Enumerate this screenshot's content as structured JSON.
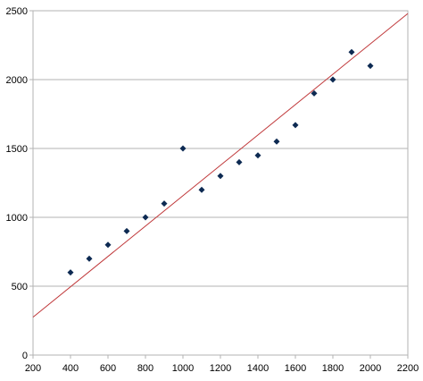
{
  "chart_data": {
    "type": "scatter",
    "title": "",
    "xlabel": "",
    "ylabel": "",
    "xlim": [
      200,
      2200
    ],
    "ylim": [
      0,
      2500
    ],
    "x_ticks": [
      "200",
      "400",
      "600",
      "800",
      "1000",
      "1200",
      "1400",
      "1600",
      "1800",
      "2000",
      "2200"
    ],
    "y_ticks": [
      "0",
      "500",
      "1000",
      "1500",
      "2000",
      "2500"
    ],
    "grid": "horizontal",
    "legend": "none",
    "series": [
      {
        "marker_color": "#0d2a52",
        "points": [
          [
            400,
            600
          ],
          [
            500,
            700
          ],
          [
            600,
            800
          ],
          [
            700,
            900
          ],
          [
            800,
            1000
          ],
          [
            900,
            1100
          ],
          [
            1000,
            1500
          ],
          [
            1100,
            1200
          ],
          [
            1200,
            1300
          ],
          [
            1300,
            1400
          ],
          [
            1400,
            1450
          ],
          [
            1500,
            1550
          ],
          [
            1600,
            1670
          ],
          [
            1700,
            1900
          ],
          [
            1800,
            2000
          ],
          [
            1900,
            2200
          ],
          [
            2000,
            2100
          ]
        ]
      }
    ],
    "trendline": {
      "color": "#c0393b",
      "from": [
        200,
        275
      ],
      "to": [
        2200,
        2480
      ]
    }
  }
}
